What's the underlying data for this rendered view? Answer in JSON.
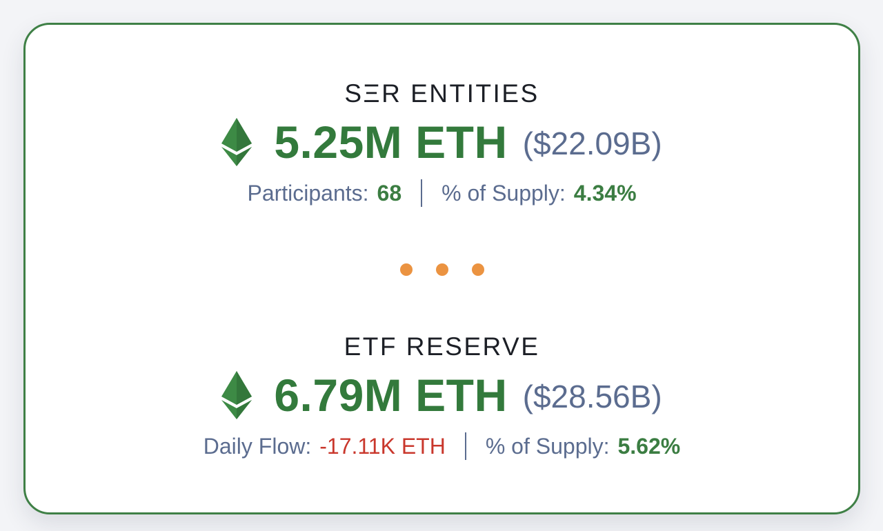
{
  "colors": {
    "border": "#3f8046",
    "eth_green": "#337a3c",
    "usd_slate": "#5b6c8f",
    "negative_red": "#c9372c",
    "dots_orange": "#eb9341"
  },
  "ser_entities": {
    "title": "SΞR ENTITIES",
    "icon": "ethereum-icon",
    "amount": "5.25M ETH",
    "usd": "($22.09B)",
    "stat1_label": "Participants:",
    "stat1_value": "68",
    "stat2_label": "% of Supply:",
    "stat2_value": "4.34%"
  },
  "etf_reserve": {
    "title": "ETF RESERVE",
    "icon": "ethereum-icon",
    "amount": "6.79M ETH",
    "usd": "($28.56B)",
    "stat1_label": "Daily Flow:",
    "stat1_value": "-17.11K ETH",
    "stat2_label": "% of Supply:",
    "stat2_value": "5.62%"
  },
  "separator": {
    "icon": "ellipsis-dots-icon"
  }
}
